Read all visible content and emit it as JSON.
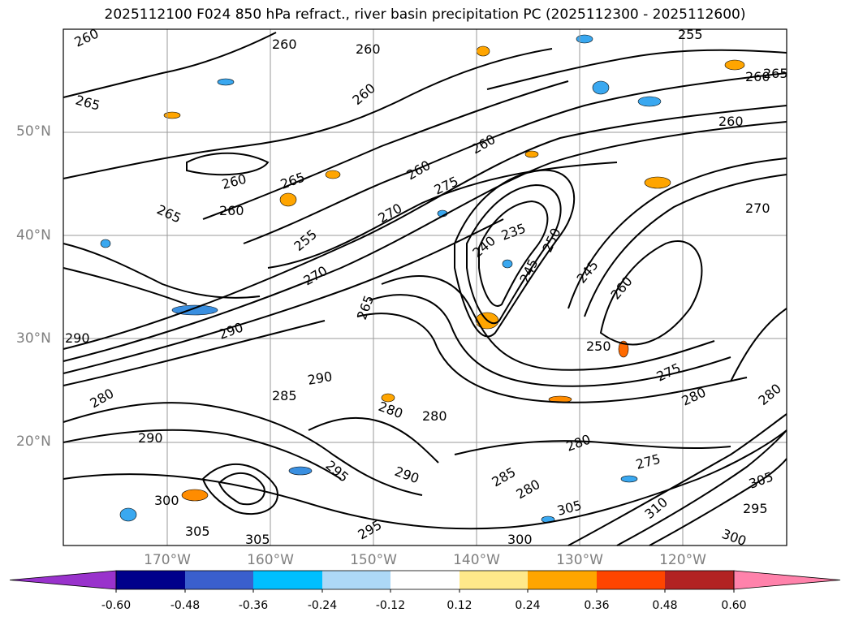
{
  "title": "2025112100 F024 850 hPa refract., river basin precipitation PC (2025112300 - 2025112600)",
  "lat_labels": [
    "50°N",
    "40°N",
    "30°N",
    "20°N"
  ],
  "lon_labels": [
    "170°W",
    "160°W",
    "150°W",
    "140°W",
    "130°W",
    "120°W"
  ],
  "colorbar": {
    "colors": [
      "#9932cc",
      "#00008b",
      "#3a5fcd",
      "#00bfff",
      "#add8f7",
      "#ffffff",
      "#ffe98a",
      "#ffa500",
      "#ff4500",
      "#b22222",
      "#ff82ab"
    ],
    "labels": [
      "-0.60",
      "-0.48",
      "-0.36",
      "-0.24",
      "-0.12",
      "0.12",
      "0.24",
      "0.36",
      "0.48",
      "0.60"
    ]
  },
  "contour_labels": [
    {
      "text": "260"
    },
    {
      "text": "260"
    },
    {
      "text": "260"
    },
    {
      "text": "255"
    },
    {
      "text": "265"
    },
    {
      "text": "260"
    },
    {
      "text": "260"
    },
    {
      "text": "265"
    },
    {
      "text": "260"
    },
    {
      "text": "260"
    },
    {
      "text": "265"
    },
    {
      "text": "260"
    },
    {
      "text": "265"
    },
    {
      "text": "260"
    },
    {
      "text": "275"
    },
    {
      "text": "260"
    },
    {
      "text": "255"
    },
    {
      "text": "270"
    },
    {
      "text": "240"
    },
    {
      "text": "235"
    },
    {
      "text": "250"
    },
    {
      "text": "245"
    },
    {
      "text": "245"
    },
    {
      "text": "260"
    },
    {
      "text": "270"
    },
    {
      "text": "270"
    },
    {
      "text": "265"
    },
    {
      "text": "290"
    },
    {
      "text": "290"
    },
    {
      "text": "280"
    },
    {
      "text": "285"
    },
    {
      "text": "290"
    },
    {
      "text": "250"
    },
    {
      "text": "275"
    },
    {
      "text": "280"
    },
    {
      "text": "280"
    },
    {
      "text": "280"
    },
    {
      "text": "280"
    },
    {
      "text": "280"
    },
    {
      "text": "285"
    },
    {
      "text": "290"
    },
    {
      "text": "290"
    },
    {
      "text": "295"
    },
    {
      "text": "300"
    },
    {
      "text": "305"
    },
    {
      "text": "305"
    },
    {
      "text": "295"
    },
    {
      "text": "300"
    },
    {
      "text": "305"
    },
    {
      "text": "310"
    },
    {
      "text": "305"
    },
    {
      "text": "295"
    },
    {
      "text": "300"
    },
    {
      "text": "275"
    },
    {
      "text": "280"
    }
  ]
}
